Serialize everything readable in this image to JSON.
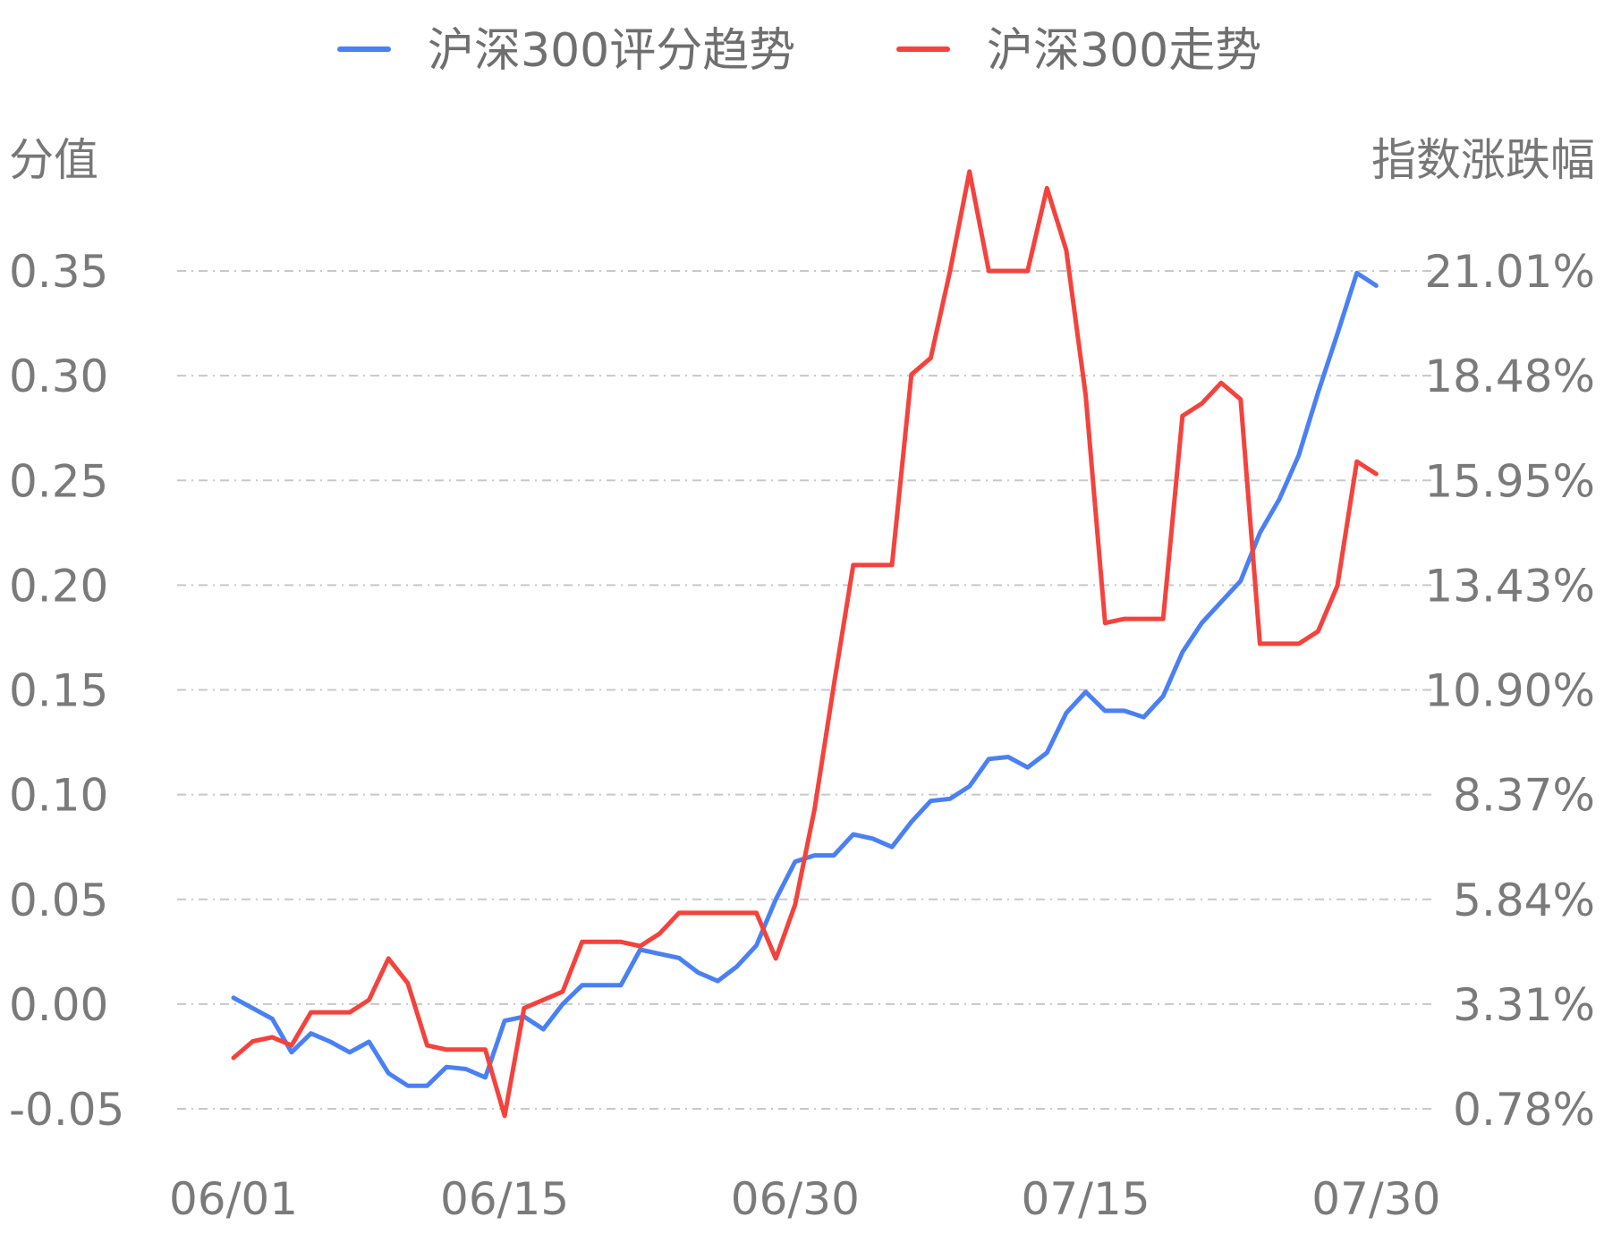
{
  "chart_data": {
    "type": "line",
    "legend": {
      "placement": "top-center",
      "entries": [
        {
          "label": "沪深300评分趋势",
          "color": "#4a80f5"
        },
        {
          "label": "沪深300走势",
          "color": "#f5423c"
        }
      ]
    },
    "left_axis": {
      "title": "分值",
      "ticks": [
        "0.35",
        "0.30",
        "0.25",
        "0.20",
        "0.15",
        "0.10",
        "0.05",
        "0.00",
        "-0.05"
      ],
      "range": [
        -0.05,
        0.35
      ]
    },
    "right_axis": {
      "title": "指数涨跌幅",
      "ticks": [
        "21.01%",
        "18.48%",
        "15.95%",
        "13.43%",
        "10.90%",
        "8.37%",
        "5.84%",
        "3.31%",
        "0.78%"
      ],
      "range": [
        0.78,
        21.01
      ]
    },
    "x_ticks": [
      {
        "label": "06/01",
        "index": 0
      },
      {
        "label": "06/15",
        "index": 14
      },
      {
        "label": "06/30",
        "index": 29
      },
      {
        "label": "07/15",
        "index": 44
      },
      {
        "label": "07/30",
        "index": 59
      }
    ],
    "grid": true,
    "series": [
      {
        "name": "沪深300评分趋势",
        "axis": "left",
        "color": "#4a80f5",
        "values": [
          0.003,
          -0.002,
          -0.007,
          -0.023,
          -0.014,
          -0.018,
          -0.023,
          -0.018,
          -0.033,
          -0.039,
          -0.039,
          -0.03,
          -0.031,
          -0.035,
          -0.008,
          -0.006,
          -0.012,
          0.0,
          0.009,
          0.009,
          0.009,
          0.026,
          0.024,
          0.022,
          0.015,
          0.011,
          0.018,
          0.028,
          0.05,
          0.068,
          0.071,
          0.071,
          0.081,
          0.079,
          0.075,
          0.087,
          0.097,
          0.098,
          0.104,
          0.117,
          0.118,
          0.113,
          0.12,
          0.139,
          0.149,
          0.14,
          0.14,
          0.137,
          0.147,
          0.168,
          0.182,
          0.192,
          0.202,
          0.225,
          0.241,
          0.262,
          0.292,
          0.32,
          0.349,
          0.343
        ]
      },
      {
        "name": "沪深300走势",
        "axis": "right",
        "color": "#f5423c",
        "values": [
          2.01,
          2.41,
          2.51,
          2.31,
          3.11,
          3.11,
          3.11,
          3.41,
          4.41,
          3.81,
          2.31,
          2.21,
          2.21,
          2.21,
          0.61,
          3.21,
          3.41,
          3.61,
          4.81,
          4.81,
          4.81,
          4.71,
          5.01,
          5.51,
          5.51,
          5.51,
          5.51,
          5.51,
          4.41,
          5.71,
          8.01,
          11.01,
          13.91,
          13.91,
          13.91,
          18.51,
          18.91,
          21.01,
          23.41,
          21.01,
          21.01,
          21.01,
          23.01,
          21.51,
          18.01,
          12.51,
          12.61,
          12.61,
          12.61,
          17.51,
          17.81,
          18.31,
          17.91,
          12.01,
          12.01,
          12.01,
          12.31,
          13.41,
          16.41,
          16.11
        ]
      }
    ]
  }
}
